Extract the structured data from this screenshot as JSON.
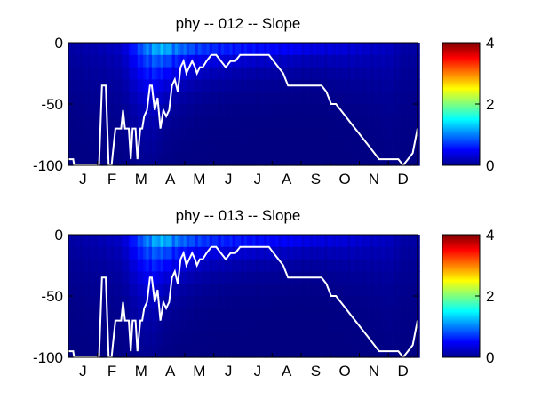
{
  "chart_data": [
    {
      "type": "heatmap",
      "title": "phy -- 012 -- Slope",
      "xlabel": "",
      "ylabel": "",
      "x_tick_labels": [
        "J",
        "F",
        "M",
        "A",
        "M",
        "J",
        "J",
        "A",
        "S",
        "O",
        "N",
        "D"
      ],
      "y_ticks": [
        0,
        -50,
        -100
      ],
      "y_tick_labels": [
        "0",
        "-50",
        "-100"
      ],
      "ylim": [
        -100,
        0
      ],
      "xlim_days": [
        1,
        365
      ],
      "colorbar": {
        "ticks": [
          0,
          2,
          4
        ],
        "tick_labels": [
          "0",
          "2",
          "4"
        ],
        "range": [
          0,
          4
        ],
        "colormap": "jet"
      },
      "depth_layers": [
        -5,
        -15,
        -25,
        -35,
        -45,
        -55,
        -65,
        -75,
        -85,
        -95
      ],
      "heat_profile": {
        "day": [
          1,
          30,
          55,
          70,
          85,
          100,
          115,
          130,
          150,
          170,
          190,
          210,
          230,
          250,
          270,
          290,
          305,
          320,
          335,
          350,
          365
        ],
        "surface": [
          0.15,
          0.2,
          0.3,
          0.7,
          1.2,
          1.4,
          1.1,
          0.95,
          0.8,
          0.75,
          0.7,
          0.65,
          0.6,
          0.5,
          0.45,
          0.4,
          0.35,
          0.3,
          0.25,
          0.15,
          0.15
        ],
        "depth_scale": [
          40,
          40,
          40,
          40,
          35,
          25,
          22,
          20,
          18,
          17,
          16,
          16,
          16,
          16,
          18,
          22,
          25,
          30,
          40,
          40,
          40
        ]
      },
      "line_series": {
        "color": "#ffffff",
        "x": [
          1,
          6,
          7,
          33,
          36,
          40,
          43,
          46,
          50,
          54,
          56,
          58,
          60,
          64,
          66,
          68,
          71,
          73,
          76,
          78,
          80,
          83,
          86,
          88,
          91,
          94,
          97,
          100,
          103,
          106,
          109,
          112,
          115,
          118,
          121,
          124,
          127,
          130,
          133,
          135,
          138,
          141,
          145,
          150,
          155,
          160,
          165,
          170,
          175,
          180,
          185,
          190,
          195,
          200,
          205,
          210,
          215,
          220,
          225,
          230,
          235,
          240,
          245,
          250,
          255,
          260,
          265,
          270,
          275,
          280,
          285,
          290,
          295,
          300,
          305,
          310,
          315,
          320,
          325,
          330,
          335,
          340,
          345,
          350,
          355,
          360,
          365
        ],
        "y": [
          -95,
          -95,
          -100,
          -100,
          -35,
          -35,
          -100,
          -100,
          -70,
          -70,
          -70,
          -55,
          -70,
          -70,
          -95,
          -70,
          -70,
          -95,
          -70,
          -70,
          -60,
          -55,
          -35,
          -35,
          -55,
          -45,
          -70,
          -55,
          -60,
          -55,
          -35,
          -30,
          -40,
          -20,
          -15,
          -25,
          -20,
          -15,
          -20,
          -25,
          -20,
          -20,
          -15,
          -10,
          -10,
          -15,
          -20,
          -15,
          -15,
          -10,
          -10,
          -10,
          -10,
          -10,
          -10,
          -10,
          -15,
          -20,
          -25,
          -35,
          -35,
          -35,
          -35,
          -35,
          -35,
          -35,
          -35,
          -40,
          -50,
          -50,
          -55,
          -60,
          -65,
          -70,
          -75,
          -80,
          -85,
          -90,
          -95,
          -95,
          -95,
          -95,
          -95,
          -100,
          -95,
          -90,
          -70
        ]
      }
    },
    {
      "type": "heatmap",
      "title": "phy -- 013 -- Slope",
      "xlabel": "",
      "ylabel": "",
      "x_tick_labels": [
        "J",
        "F",
        "M",
        "A",
        "M",
        "J",
        "J",
        "A",
        "S",
        "O",
        "N",
        "D"
      ],
      "y_ticks": [
        0,
        -50,
        -100
      ],
      "y_tick_labels": [
        "0",
        "-50",
        "-100"
      ],
      "ylim": [
        -100,
        0
      ],
      "xlim_days": [
        1,
        365
      ],
      "colorbar": {
        "ticks": [
          0,
          2,
          4
        ],
        "tick_labels": [
          "0",
          "2",
          "4"
        ],
        "range": [
          0,
          4
        ],
        "colormap": "jet"
      },
      "depth_layers": [
        -5,
        -15,
        -25,
        -35,
        -45,
        -55,
        -65,
        -75,
        -85,
        -95
      ],
      "heat_profile": {
        "day": [
          1,
          30,
          55,
          70,
          85,
          100,
          115,
          130,
          150,
          170,
          190,
          210,
          230,
          250,
          270,
          290,
          305,
          320,
          335,
          350,
          365
        ],
        "surface": [
          0.15,
          0.2,
          0.3,
          0.7,
          1.2,
          1.4,
          1.1,
          0.95,
          0.8,
          0.75,
          0.7,
          0.65,
          0.6,
          0.5,
          0.45,
          0.4,
          0.35,
          0.3,
          0.25,
          0.15,
          0.15
        ],
        "depth_scale": [
          40,
          40,
          40,
          40,
          35,
          25,
          22,
          20,
          18,
          17,
          16,
          16,
          16,
          16,
          18,
          22,
          25,
          30,
          40,
          40,
          40
        ]
      },
      "line_series": {
        "color": "#ffffff",
        "x": [
          1,
          6,
          7,
          33,
          36,
          40,
          43,
          46,
          50,
          54,
          56,
          58,
          60,
          64,
          66,
          68,
          71,
          73,
          76,
          78,
          80,
          83,
          86,
          88,
          91,
          94,
          97,
          100,
          103,
          106,
          109,
          112,
          115,
          118,
          121,
          124,
          127,
          130,
          133,
          135,
          138,
          141,
          145,
          150,
          155,
          160,
          165,
          170,
          175,
          180,
          185,
          190,
          195,
          200,
          205,
          210,
          215,
          220,
          225,
          230,
          235,
          240,
          245,
          250,
          255,
          260,
          265,
          270,
          275,
          280,
          285,
          290,
          295,
          300,
          305,
          310,
          315,
          320,
          325,
          330,
          335,
          340,
          345,
          350,
          355,
          360,
          365
        ],
        "y": [
          -95,
          -95,
          -100,
          -100,
          -35,
          -35,
          -100,
          -100,
          -70,
          -70,
          -70,
          -55,
          -70,
          -70,
          -95,
          -70,
          -70,
          -95,
          -70,
          -70,
          -60,
          -55,
          -35,
          -35,
          -55,
          -45,
          -70,
          -55,
          -60,
          -55,
          -35,
          -30,
          -40,
          -20,
          -15,
          -25,
          -20,
          -15,
          -20,
          -25,
          -20,
          -20,
          -15,
          -10,
          -10,
          -15,
          -20,
          -15,
          -15,
          -10,
          -10,
          -10,
          -10,
          -10,
          -10,
          -10,
          -15,
          -20,
          -25,
          -35,
          -35,
          -35,
          -35,
          -35,
          -35,
          -35,
          -35,
          -40,
          -50,
          -50,
          -55,
          -60,
          -65,
          -70,
          -75,
          -80,
          -85,
          -90,
          -95,
          -95,
          -95,
          -95,
          -95,
          -100,
          -95,
          -90,
          -70
        ]
      }
    }
  ]
}
